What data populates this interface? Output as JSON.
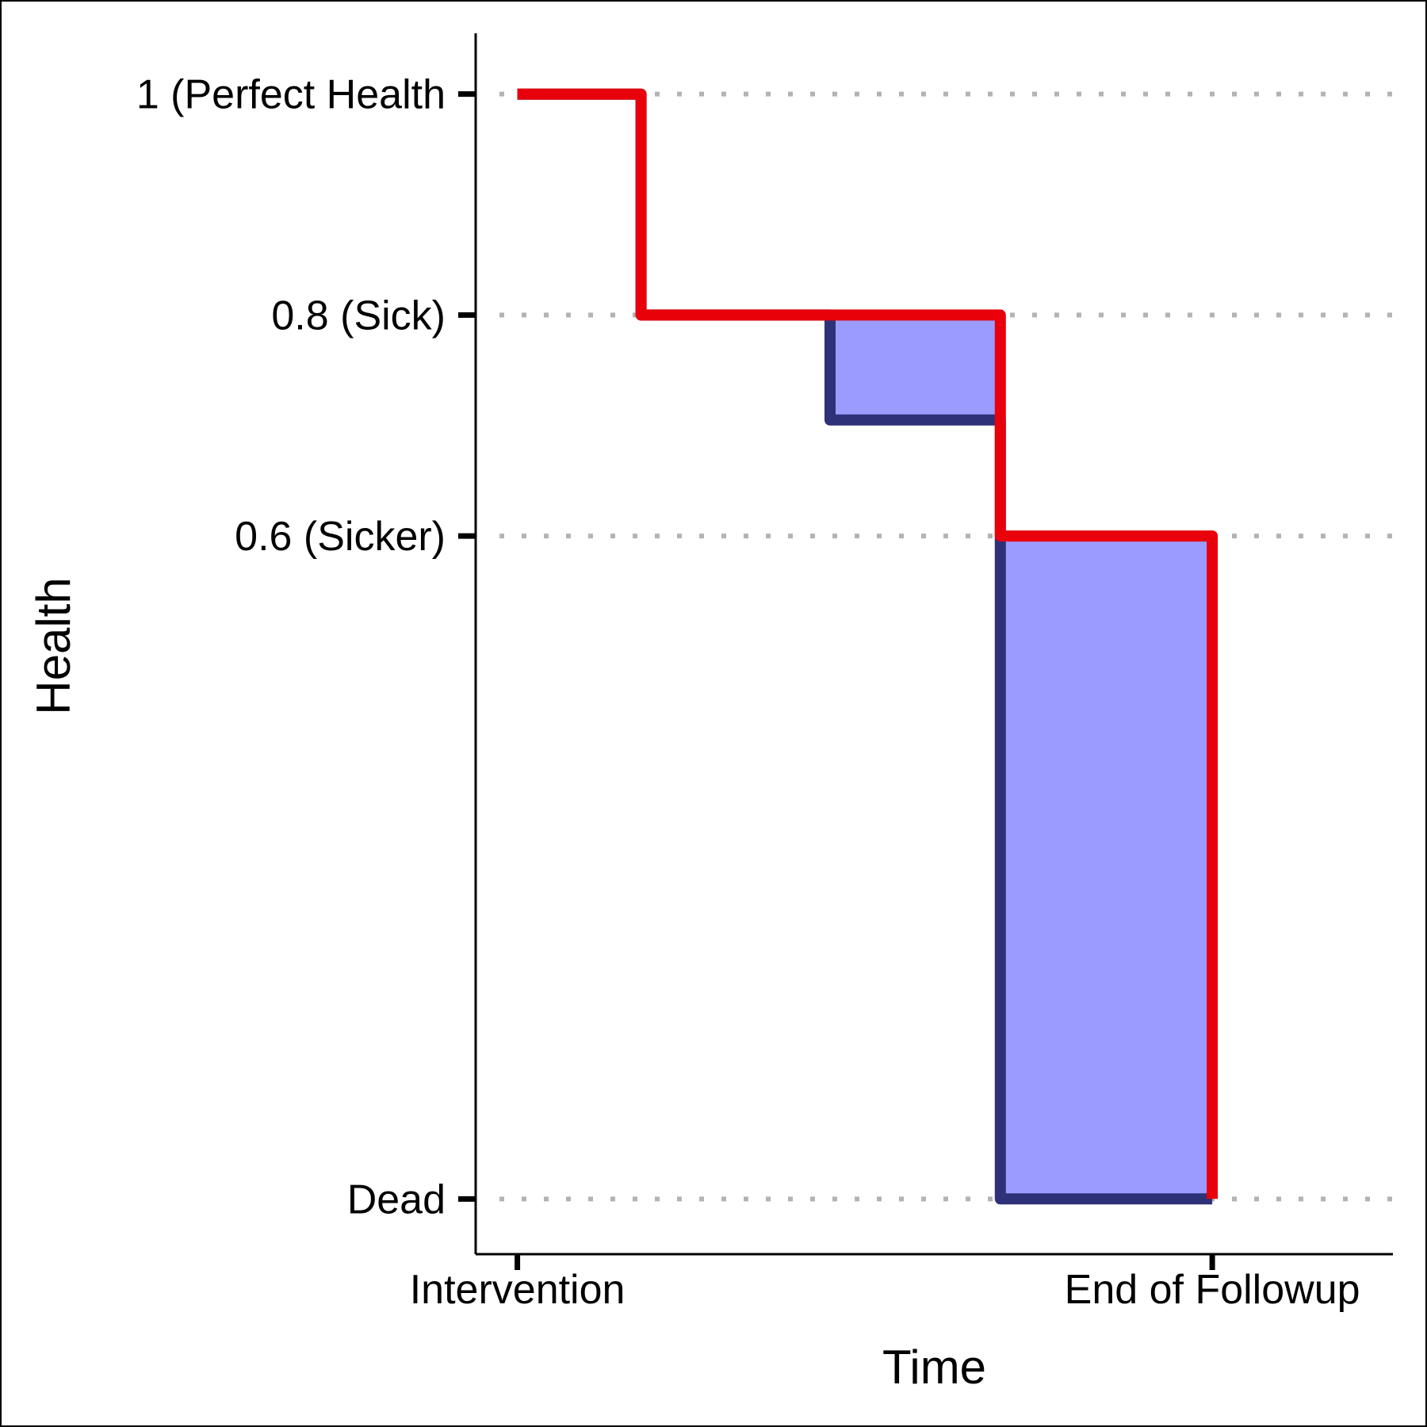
{
  "chart_data": {
    "type": "line",
    "title": "",
    "xlabel": "Time",
    "ylabel": "Health",
    "xlim": [
      -0.06,
      1.26
    ],
    "ylim": [
      -0.05,
      1.055
    ],
    "x_ticks": [
      {
        "value": 0,
        "label": "Intervention"
      },
      {
        "value": 1,
        "label": "End of Followup"
      }
    ],
    "y_ticks": [
      {
        "value": 1,
        "label": "1 (Perfect Health"
      },
      {
        "value": 0.8,
        "label": "0.8 (Sick)"
      },
      {
        "value": 0.6,
        "label": "0.6 (Sicker)"
      },
      {
        "value": 0,
        "label": "Dead"
      }
    ],
    "grid": "horizontal dotted at y ticks",
    "legend": "none",
    "shaded_regions": [
      {
        "x": [
          0.45,
          0.695
        ],
        "y_top": 0.8,
        "y_bottom": 0.705
      },
      {
        "x": [
          0.695,
          1.0
        ],
        "y_top": 0.6,
        "y_bottom": 0.0
      }
    ],
    "series": [
      {
        "color": "#2e3178",
        "step_points": [
          [
            0,
            1
          ],
          [
            0.178,
            1
          ],
          [
            0.178,
            0.8
          ],
          [
            0.45,
            0.8
          ],
          [
            0.45,
            0.705
          ],
          [
            0.695,
            0.705
          ],
          [
            0.695,
            0.0
          ],
          [
            1.0,
            0.0
          ]
        ]
      },
      {
        "color": "#e8000b",
        "step_points": [
          [
            0,
            1
          ],
          [
            0.178,
            1
          ],
          [
            0.178,
            0.8
          ],
          [
            0.695,
            0.8
          ],
          [
            0.695,
            0.6
          ],
          [
            1.0,
            0.6
          ],
          [
            1.0,
            0.0
          ]
        ]
      }
    ],
    "fill_color": "#9b9bff",
    "grid_color": "#b3b3b3"
  }
}
